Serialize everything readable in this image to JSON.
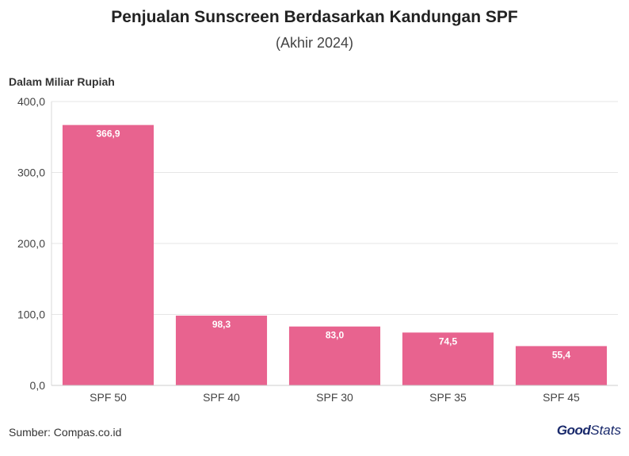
{
  "chart_data": {
    "type": "bar",
    "title": "Penjualan Sunscreen Berdasarkan Kandungan SPF",
    "subtitle": "(Akhir 2024)",
    "ylabel": "Dalam Miliar Rupiah",
    "xlabel": "",
    "categories": [
      "SPF 50",
      "SPF 40",
      "SPF 30",
      "SPF 35",
      "SPF 45"
    ],
    "values": [
      366.9,
      98.3,
      83.0,
      74.5,
      55.4
    ],
    "value_labels": [
      "366,9",
      "98,3",
      "83,0",
      "74,5",
      "55,4"
    ],
    "ylim": [
      0,
      400
    ],
    "yticks": [
      0,
      100,
      200,
      300,
      400
    ],
    "ytick_labels": [
      "0,0",
      "100,0",
      "200,0",
      "300,0",
      "400,0"
    ],
    "grid": true,
    "bar_color": "#e8638f"
  },
  "footer": {
    "source": "Sumber: Compas.co.id",
    "logo_good": "Good",
    "logo_stats": "Stats"
  }
}
